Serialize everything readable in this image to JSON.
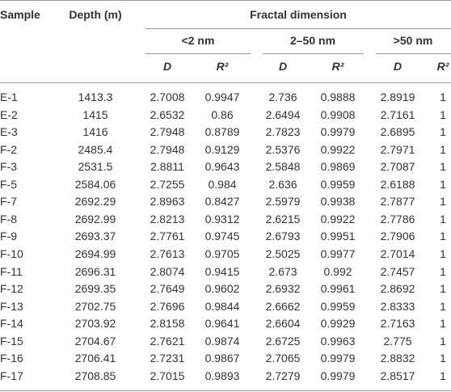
{
  "header": {
    "columns": [
      "Sample",
      "Depth (m)"
    ],
    "group": "Fractal dimension",
    "subgroups": [
      "<2 nm",
      "2–50 nm",
      ">50 nm"
    ],
    "subcolumns": [
      "D",
      "R²",
      "D",
      "R²",
      "D",
      "R²"
    ]
  },
  "table": {
    "rows": [
      [
        "E-1",
        "1413.3",
        "2.7008",
        "0.9947",
        "2.736",
        "0.9888",
        "2.8919",
        "1"
      ],
      [
        "E-2",
        "1415",
        "2.6532",
        "0.86",
        "2.6494",
        "0.9908",
        "2.7161",
        "1"
      ],
      [
        "E-3",
        "1416",
        "2.7948",
        "0.8789",
        "2.7823",
        "0.9979",
        "2.6895",
        "1"
      ],
      [
        "F-2",
        "2485.4",
        "2.7948",
        "0.9129",
        "2.5376",
        "0.9922",
        "2.7971",
        "1"
      ],
      [
        "F-3",
        "2531.5",
        "2.8811",
        "0.9643",
        "2.5848",
        "0.9869",
        "2.7087",
        "1"
      ],
      [
        "F-5",
        "2584.06",
        "2.7255",
        "0.984",
        "2.636",
        "0.9959",
        "2.6188",
        "1"
      ],
      [
        "F-7",
        "2692.29",
        "2.8963",
        "0.8427",
        "2.5979",
        "0.9938",
        "2.7877",
        "1"
      ],
      [
        "F-8",
        "2692.99",
        "2.8213",
        "0.9312",
        "2.6215",
        "0.9922",
        "2.7786",
        "1"
      ],
      [
        "F-9",
        "2693.37",
        "2.7761",
        "0.9745",
        "2.6793",
        "0.9951",
        "2.7906",
        "1"
      ],
      [
        "F-10",
        "2694.99",
        "2.7613",
        "0.9705",
        "2.5025",
        "0.9977",
        "2.7014",
        "1"
      ],
      [
        "F-11",
        "2696.31",
        "2.8074",
        "0.9415",
        "2.673",
        "0.992",
        "2.7457",
        "1"
      ],
      [
        "F-12",
        "2699.35",
        "2.7649",
        "0.9602",
        "2.6932",
        "0.9961",
        "2.8692",
        "1"
      ],
      [
        "F-13",
        "2702.75",
        "2.7696",
        "0.9844",
        "2.6662",
        "0.9959",
        "2.8333",
        "1"
      ],
      [
        "F-14",
        "2703.92",
        "2.8158",
        "0.9641",
        "2.6604",
        "0.9929",
        "2.7163",
        "1"
      ],
      [
        "F-15",
        "2704.67",
        "2.7621",
        "0.9874",
        "2.6725",
        "0.9963",
        "2.775",
        "1"
      ],
      [
        "F-16",
        "2706.41",
        "2.7231",
        "0.9867",
        "2.7065",
        "0.9979",
        "2.8832",
        "1"
      ],
      [
        "F-17",
        "2708.85",
        "2.7015",
        "0.9893",
        "2.7279",
        "0.9979",
        "2.8517",
        "1"
      ]
    ]
  }
}
